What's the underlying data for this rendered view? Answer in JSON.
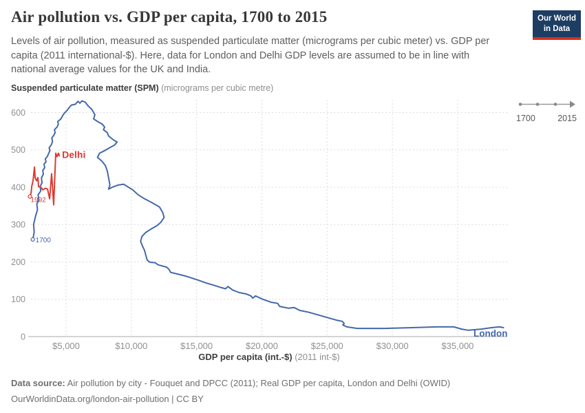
{
  "header": {
    "title": "Air pollution vs. GDP per capita, 1700 to 2015",
    "subtitle": "Levels of air pollution, measured as suspended particulate matter (micrograms per cubic meter) vs. GDP per capita (2011 international-$). Here, data for London and Delhi GDP levels are assumed to be in line with national average values for the UK and India.",
    "logo": {
      "line1": "Our World",
      "line2": "in Data",
      "bg_color": "#1d3d63",
      "stripe_color": "#dc2e1f"
    }
  },
  "timeline": {
    "start_label": "1700",
    "end_label": "2015"
  },
  "chart_data": {
    "type": "line",
    "title": "Air pollution vs. GDP per capita, 1700 to 2015",
    "xlabel": "GDP per capita (int.-$)",
    "xlabel_note": "(2011 int-$)",
    "ylabel": "Suspended particulate matter (SPM)",
    "ylabel_note": "(micrograms per cubic metre)",
    "xlim": [
      2310,
      38800
    ],
    "ylim": [
      0,
      634
    ],
    "x_ticks": [
      5000,
      10000,
      15000,
      20000,
      25000,
      30000,
      35000
    ],
    "x_tick_labels": [
      "$5,000",
      "$10,000",
      "$15,000",
      "$20,000",
      "$25,000",
      "$30,000",
      "$35,000"
    ],
    "y_ticks": [
      0,
      100,
      200,
      300,
      400,
      500,
      600
    ],
    "grid": true,
    "legend_position": "inline-labels",
    "series": [
      {
        "name": "London",
        "color": "#4268ab",
        "start_year": "1700",
        "points": [
          [
            2450,
            260
          ],
          [
            2560,
            280
          ],
          [
            2510,
            300
          ],
          [
            2660,
            322
          ],
          [
            2810,
            340
          ],
          [
            2760,
            355
          ],
          [
            2910,
            365
          ],
          [
            2860,
            380
          ],
          [
            3060,
            390
          ],
          [
            3010,
            402
          ],
          [
            3160,
            412
          ],
          [
            3110,
            425
          ],
          [
            3260,
            435
          ],
          [
            3210,
            445
          ],
          [
            3360,
            452
          ],
          [
            3310,
            462
          ],
          [
            3460,
            468
          ],
          [
            3410,
            476
          ],
          [
            3560,
            482
          ],
          [
            3660,
            490
          ],
          [
            3760,
            498
          ],
          [
            3710,
            506
          ],
          [
            3860,
            513
          ],
          [
            3960,
            522
          ],
          [
            3910,
            532
          ],
          [
            4060,
            539
          ],
          [
            4160,
            546
          ],
          [
            4110,
            554
          ],
          [
            4310,
            561
          ],
          [
            4410,
            569
          ],
          [
            4360,
            576
          ],
          [
            4610,
            583
          ],
          [
            4710,
            590
          ],
          [
            4860,
            598
          ],
          [
            5060,
            605
          ],
          [
            5210,
            612
          ],
          [
            5410,
            620
          ],
          [
            5710,
            622
          ],
          [
            5910,
            630
          ],
          [
            6060,
            625
          ],
          [
            6210,
            631
          ],
          [
            6460,
            628
          ],
          [
            6710,
            617
          ],
          [
            6960,
            609
          ],
          [
            7210,
            594
          ],
          [
            7110,
            583
          ],
          [
            7410,
            576
          ],
          [
            7760,
            569
          ],
          [
            7960,
            561
          ],
          [
            7860,
            554
          ],
          [
            8160,
            546
          ],
          [
            8260,
            537
          ],
          [
            8660,
            526
          ],
          [
            8910,
            521
          ],
          [
            8710,
            513
          ],
          [
            8460,
            508
          ],
          [
            7960,
            498
          ],
          [
            7560,
            491
          ],
          [
            7410,
            480
          ],
          [
            7760,
            469
          ],
          [
            8010,
            458
          ],
          [
            8160,
            443
          ],
          [
            8260,
            425
          ],
          [
            8360,
            406
          ],
          [
            8260,
            395
          ],
          [
            8610,
            401
          ],
          [
            9010,
            406
          ],
          [
            9410,
            408
          ],
          [
            10110,
            393
          ],
          [
            10510,
            380
          ],
          [
            11010,
            369
          ],
          [
            11610,
            358
          ],
          [
            12160,
            347
          ],
          [
            12410,
            332
          ],
          [
            12510,
            319
          ],
          [
            12260,
            306
          ],
          [
            11960,
            297
          ],
          [
            11510,
            288
          ],
          [
            11110,
            279
          ],
          [
            10810,
            268
          ],
          [
            10710,
            255
          ],
          [
            10860,
            242
          ],
          [
            11010,
            231
          ],
          [
            11110,
            218
          ],
          [
            11210,
            205
          ],
          [
            11410,
            199
          ],
          [
            11810,
            198
          ],
          [
            12060,
            192
          ],
          [
            12710,
            186
          ],
          [
            12910,
            179
          ],
          [
            13010,
            172
          ],
          [
            13710,
            166
          ],
          [
            14160,
            162
          ],
          [
            14610,
            157
          ],
          [
            15210,
            150
          ],
          [
            15710,
            144
          ],
          [
            16260,
            138
          ],
          [
            16910,
            131
          ],
          [
            17210,
            128
          ],
          [
            17410,
            134
          ],
          [
            17710,
            126
          ],
          [
            17810,
            124
          ],
          [
            18260,
            118
          ],
          [
            18810,
            114
          ],
          [
            19160,
            109
          ],
          [
            19310,
            103
          ],
          [
            19510,
            109
          ],
          [
            20060,
            100
          ],
          [
            20710,
            92
          ],
          [
            21210,
            89
          ],
          [
            21360,
            81
          ],
          [
            22060,
            76
          ],
          [
            22460,
            78
          ],
          [
            22910,
            70
          ],
          [
            23610,
            65
          ],
          [
            24710,
            54
          ],
          [
            25710,
            44
          ],
          [
            26160,
            41
          ],
          [
            26310,
            35
          ],
          [
            26210,
            31
          ],
          [
            26510,
            26
          ],
          [
            27310,
            22
          ],
          [
            29410,
            22
          ],
          [
            31510,
            24
          ],
          [
            33410,
            26
          ],
          [
            34710,
            26
          ],
          [
            35310,
            20
          ],
          [
            35810,
            17
          ],
          [
            36810,
            20
          ],
          [
            37610,
            24
          ],
          [
            38210,
            26
          ],
          [
            38510,
            24
          ]
        ]
      },
      {
        "name": "Delhi",
        "color": "#dd3a30",
        "start_year": "1992",
        "points": [
          [
            2230,
            375
          ],
          [
            2320,
            384
          ],
          [
            2370,
            402
          ],
          [
            2470,
            417
          ],
          [
            2580,
            454
          ],
          [
            2630,
            425
          ],
          [
            2740,
            417
          ],
          [
            2840,
            426
          ],
          [
            2890,
            402
          ],
          [
            3100,
            399
          ],
          [
            3210,
            393
          ],
          [
            3420,
            397
          ],
          [
            3580,
            395
          ],
          [
            3740,
            369
          ],
          [
            3890,
            436
          ],
          [
            4050,
            353
          ],
          [
            4210,
            491
          ],
          [
            4310,
            482
          ],
          [
            4420,
            491
          ],
          [
            4480,
            484
          ]
        ]
      }
    ]
  },
  "footer": {
    "source_label": "Data source:",
    "source_text": " Air pollution by city - Fouquet and DPCC (2011); Real GDP per capita, London and Delhi (OWID)",
    "link_line": "OurWorldinData.org/london-air-pollution | CC BY"
  }
}
